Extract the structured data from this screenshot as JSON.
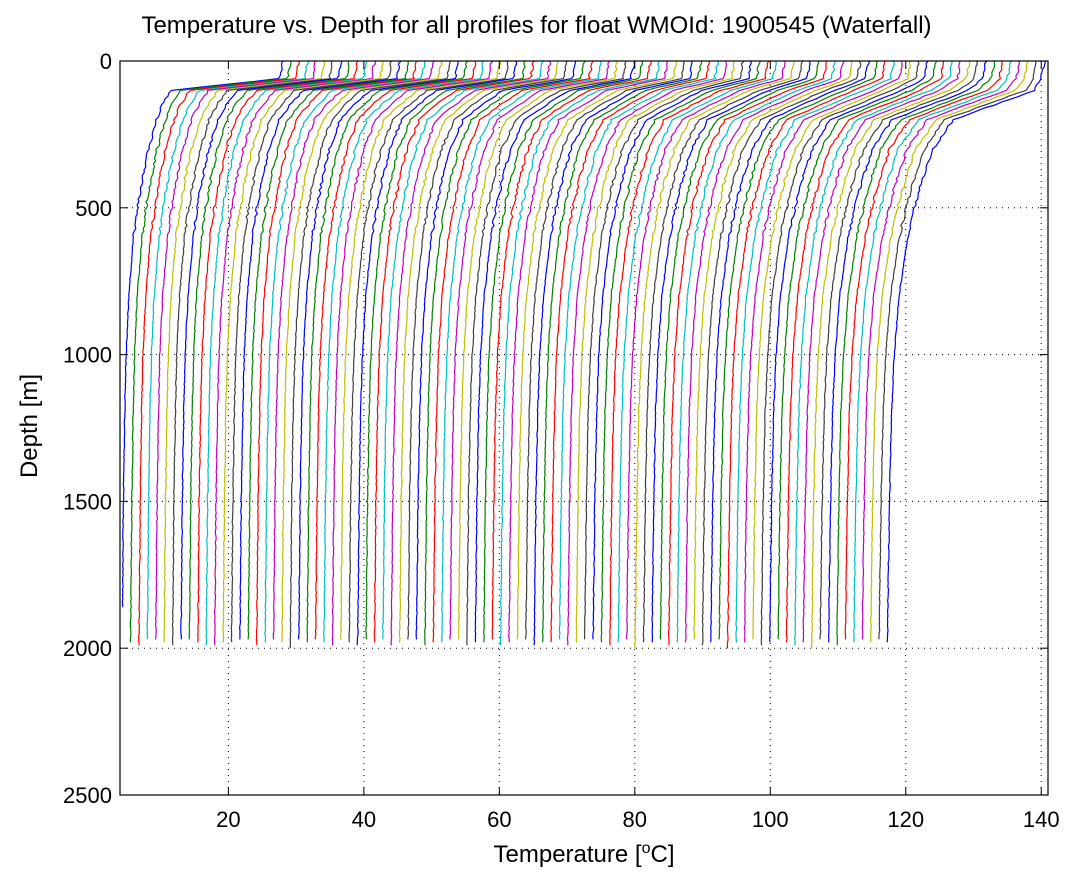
{
  "chart_data": {
    "type": "line",
    "title": "Temperature vs. Depth for all profiles for float WMOId: 1900545 (Waterfall)",
    "xlabel_prefix": "Temperature [",
    "xlabel_sup": "o",
    "xlabel_suffix": "C]",
    "ylabel": "Depth [m]",
    "xlim": [
      4,
      141
    ],
    "ylim": [
      0,
      2500
    ],
    "y_reversed": true,
    "grid": true,
    "xticks": [
      20,
      40,
      60,
      80,
      100,
      120,
      140
    ],
    "yticks": [
      0,
      500,
      1000,
      1500,
      2000,
      2500
    ],
    "xtick_labels": [
      "20",
      "40",
      "60",
      "80",
      "100",
      "120",
      "140"
    ],
    "ytick_labels": [
      "0",
      "500",
      "1000",
      "1500",
      "2000",
      "2500"
    ],
    "series_colors": [
      "#0000ff",
      "#008000",
      "#ff0000",
      "#00bfbf",
      "#bf00bf",
      "#bfbf00",
      "#404040"
    ],
    "profiles": {
      "count": 92,
      "offset_step": 1.2,
      "note_shape": "each profile = surface temperature decreasing with depth, shifted right by profile index",
      "depth_levels": [
        0,
        60,
        100,
        150,
        200,
        300,
        400,
        500,
        600,
        800,
        1000,
        1200,
        1500,
        1800,
        2000
      ],
      "base_first": [
        28.0,
        27.5,
        11.5,
        10.2,
        9.4,
        8.2,
        7.3,
        6.6,
        6.0,
        5.3,
        4.9,
        4.7,
        4.5,
        4.4,
        4.3
      ],
      "base_last": [
        140.5,
        140.0,
        139.0,
        133.0,
        127.0,
        124.0,
        122.5,
        121.3,
        120.3,
        119.0,
        118.3,
        117.9,
        117.6,
        117.4,
        117.3
      ],
      "max_depths": [
        1860,
        1985,
        1990,
        1975,
        1970,
        1980,
        1990,
        1970,
        1975,
        1985,
        1990,
        1990,
        1980,
        1985,
        1975,
        1970,
        1990,
        1985,
        1975,
        1980,
        2000,
        1975,
        1985,
        1970,
        1980,
        1990,
        1975,
        1985,
        1990,
        1970,
        1980,
        1975,
        1990,
        1985,
        1970,
        1975,
        1990,
        1985,
        1980,
        1975,
        1970,
        1990,
        1985,
        1980,
        1975,
        1990,
        1985,
        1975,
        1970,
        1990,
        1985,
        1980,
        1975,
        1990,
        1985,
        1970,
        1975,
        1980,
        1990,
        1985,
        1975,
        2000,
        1980,
        1985,
        1975,
        1990,
        1980,
        1985,
        1975,
        1990,
        1985,
        1970,
        2000,
        1985,
        1980,
        1975,
        1990,
        1985,
        1975,
        1980,
        1990,
        1985,
        2000,
        1975,
        1985,
        1990,
        1975,
        1985,
        1970,
        1980,
        1975,
        1985
      ]
    }
  }
}
